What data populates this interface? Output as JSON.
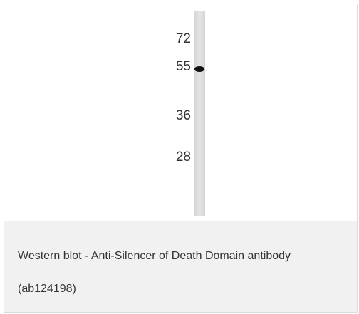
{
  "figure": {
    "markers": [
      "72",
      "55",
      "36",
      "28"
    ],
    "caption": "Western blot - Anti-Silencer of Death Domain antibody (ab124198)"
  }
}
